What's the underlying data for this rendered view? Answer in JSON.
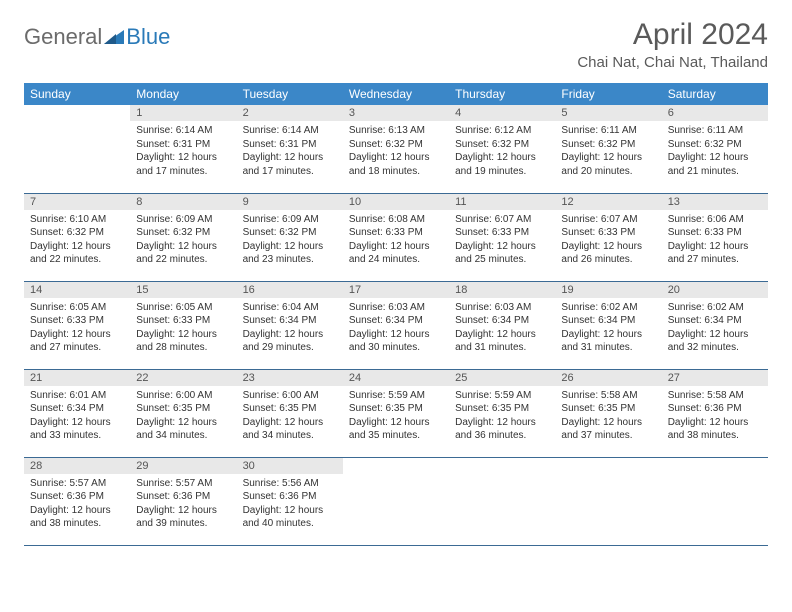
{
  "logo": {
    "text_general": "General",
    "text_blue": "Blue"
  },
  "header": {
    "month_title": "April 2024",
    "location": "Chai Nat, Chai Nat, Thailand"
  },
  "colors": {
    "header_bar": "#3b87c8",
    "header_text": "#ffffff",
    "daynum_bg": "#e8e8e8",
    "row_border": "#3b6a94",
    "logo_gray": "#6b6b6b",
    "logo_blue": "#2a7ab8",
    "title_color": "#5a5a5a",
    "body_text": "#333333",
    "page_bg": "#ffffff"
  },
  "typography": {
    "month_title_size": 30,
    "location_size": 15,
    "weekday_size": 12,
    "daynum_size": 11,
    "body_size": 10,
    "font_family": "Arial"
  },
  "weekdays": [
    "Sunday",
    "Monday",
    "Tuesday",
    "Wednesday",
    "Thursday",
    "Friday",
    "Saturday"
  ],
  "weeks": [
    [
      null,
      {
        "n": "1",
        "sunrise": "6:14 AM",
        "sunset": "6:31 PM",
        "daylight": "12 hours and 17 minutes."
      },
      {
        "n": "2",
        "sunrise": "6:14 AM",
        "sunset": "6:31 PM",
        "daylight": "12 hours and 17 minutes."
      },
      {
        "n": "3",
        "sunrise": "6:13 AM",
        "sunset": "6:32 PM",
        "daylight": "12 hours and 18 minutes."
      },
      {
        "n": "4",
        "sunrise": "6:12 AM",
        "sunset": "6:32 PM",
        "daylight": "12 hours and 19 minutes."
      },
      {
        "n": "5",
        "sunrise": "6:11 AM",
        "sunset": "6:32 PM",
        "daylight": "12 hours and 20 minutes."
      },
      {
        "n": "6",
        "sunrise": "6:11 AM",
        "sunset": "6:32 PM",
        "daylight": "12 hours and 21 minutes."
      }
    ],
    [
      {
        "n": "7",
        "sunrise": "6:10 AM",
        "sunset": "6:32 PM",
        "daylight": "12 hours and 22 minutes."
      },
      {
        "n": "8",
        "sunrise": "6:09 AM",
        "sunset": "6:32 PM",
        "daylight": "12 hours and 22 minutes."
      },
      {
        "n": "9",
        "sunrise": "6:09 AM",
        "sunset": "6:32 PM",
        "daylight": "12 hours and 23 minutes."
      },
      {
        "n": "10",
        "sunrise": "6:08 AM",
        "sunset": "6:33 PM",
        "daylight": "12 hours and 24 minutes."
      },
      {
        "n": "11",
        "sunrise": "6:07 AM",
        "sunset": "6:33 PM",
        "daylight": "12 hours and 25 minutes."
      },
      {
        "n": "12",
        "sunrise": "6:07 AM",
        "sunset": "6:33 PM",
        "daylight": "12 hours and 26 minutes."
      },
      {
        "n": "13",
        "sunrise": "6:06 AM",
        "sunset": "6:33 PM",
        "daylight": "12 hours and 27 minutes."
      }
    ],
    [
      {
        "n": "14",
        "sunrise": "6:05 AM",
        "sunset": "6:33 PM",
        "daylight": "12 hours and 27 minutes."
      },
      {
        "n": "15",
        "sunrise": "6:05 AM",
        "sunset": "6:33 PM",
        "daylight": "12 hours and 28 minutes."
      },
      {
        "n": "16",
        "sunrise": "6:04 AM",
        "sunset": "6:34 PM",
        "daylight": "12 hours and 29 minutes."
      },
      {
        "n": "17",
        "sunrise": "6:03 AM",
        "sunset": "6:34 PM",
        "daylight": "12 hours and 30 minutes."
      },
      {
        "n": "18",
        "sunrise": "6:03 AM",
        "sunset": "6:34 PM",
        "daylight": "12 hours and 31 minutes."
      },
      {
        "n": "19",
        "sunrise": "6:02 AM",
        "sunset": "6:34 PM",
        "daylight": "12 hours and 31 minutes."
      },
      {
        "n": "20",
        "sunrise": "6:02 AM",
        "sunset": "6:34 PM",
        "daylight": "12 hours and 32 minutes."
      }
    ],
    [
      {
        "n": "21",
        "sunrise": "6:01 AM",
        "sunset": "6:34 PM",
        "daylight": "12 hours and 33 minutes."
      },
      {
        "n": "22",
        "sunrise": "6:00 AM",
        "sunset": "6:35 PM",
        "daylight": "12 hours and 34 minutes."
      },
      {
        "n": "23",
        "sunrise": "6:00 AM",
        "sunset": "6:35 PM",
        "daylight": "12 hours and 34 minutes."
      },
      {
        "n": "24",
        "sunrise": "5:59 AM",
        "sunset": "6:35 PM",
        "daylight": "12 hours and 35 minutes."
      },
      {
        "n": "25",
        "sunrise": "5:59 AM",
        "sunset": "6:35 PM",
        "daylight": "12 hours and 36 minutes."
      },
      {
        "n": "26",
        "sunrise": "5:58 AM",
        "sunset": "6:35 PM",
        "daylight": "12 hours and 37 minutes."
      },
      {
        "n": "27",
        "sunrise": "5:58 AM",
        "sunset": "6:36 PM",
        "daylight": "12 hours and 38 minutes."
      }
    ],
    [
      {
        "n": "28",
        "sunrise": "5:57 AM",
        "sunset": "6:36 PM",
        "daylight": "12 hours and 38 minutes."
      },
      {
        "n": "29",
        "sunrise": "5:57 AM",
        "sunset": "6:36 PM",
        "daylight": "12 hours and 39 minutes."
      },
      {
        "n": "30",
        "sunrise": "5:56 AM",
        "sunset": "6:36 PM",
        "daylight": "12 hours and 40 minutes."
      },
      null,
      null,
      null,
      null
    ]
  ],
  "labels": {
    "sunrise_prefix": "Sunrise: ",
    "sunset_prefix": "Sunset: ",
    "daylight_prefix": "Daylight: "
  }
}
